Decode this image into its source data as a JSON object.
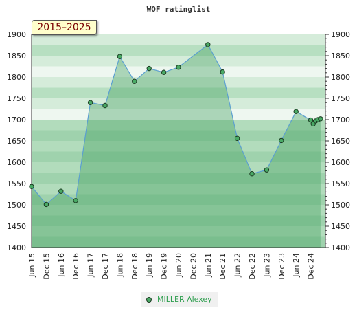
{
  "chart_data": {
    "type": "area",
    "title": "WOF ratinglist",
    "period": "2015–2025",
    "ylim": [
      1400,
      1900
    ],
    "yticks": [
      1400,
      1450,
      1500,
      1550,
      1600,
      1650,
      1700,
      1750,
      1800,
      1850,
      1900
    ],
    "xtick_labels": [
      "Jun 15",
      "Dec 15",
      "Jun 16",
      "Dec 16",
      "Jun 17",
      "Dec 17",
      "Jun 18",
      "Dec 18",
      "Jun 19",
      "Dec 19",
      "Jun 20",
      "Dec 20",
      "Jun 21",
      "Dec 21",
      "Jun 22",
      "Dec 22",
      "Jun 23",
      "Dec 23",
      "Jun 24",
      "Dec 24"
    ],
    "legend": "bottom-center",
    "grid": "banded",
    "series": [
      {
        "name": "MILLER Alexey",
        "color": "#4aaa66",
        "points": [
          {
            "x": "2015-06",
            "y": 1543
          },
          {
            "x": "2015-12",
            "y": 1501
          },
          {
            "x": "2016-06",
            "y": 1532
          },
          {
            "x": "2016-12",
            "y": 1510
          },
          {
            "x": "2017-06",
            "y": 1740
          },
          {
            "x": "2017-12",
            "y": 1733
          },
          {
            "x": "2018-06",
            "y": 1848
          },
          {
            "x": "2018-12",
            "y": 1790
          },
          {
            "x": "2019-06",
            "y": 1820
          },
          {
            "x": "2019-12",
            "y": 1811
          },
          {
            "x": "2020-06",
            "y": 1823
          },
          {
            "x": "2021-06",
            "y": 1876
          },
          {
            "x": "2021-12",
            "y": 1812
          },
          {
            "x": "2022-06",
            "y": 1656
          },
          {
            "x": "2022-12",
            "y": 1573
          },
          {
            "x": "2023-06",
            "y": 1582
          },
          {
            "x": "2023-12",
            "y": 1651
          },
          {
            "x": "2024-06",
            "y": 1719
          },
          {
            "x": "2024-12",
            "y": 1699
          },
          {
            "x": "2025-01",
            "y": 1690
          },
          {
            "x": "2025-02",
            "y": 1697
          },
          {
            "x": "2025-03",
            "y": 1700
          },
          {
            "x": "2025-04",
            "y": 1702
          }
        ]
      }
    ]
  }
}
